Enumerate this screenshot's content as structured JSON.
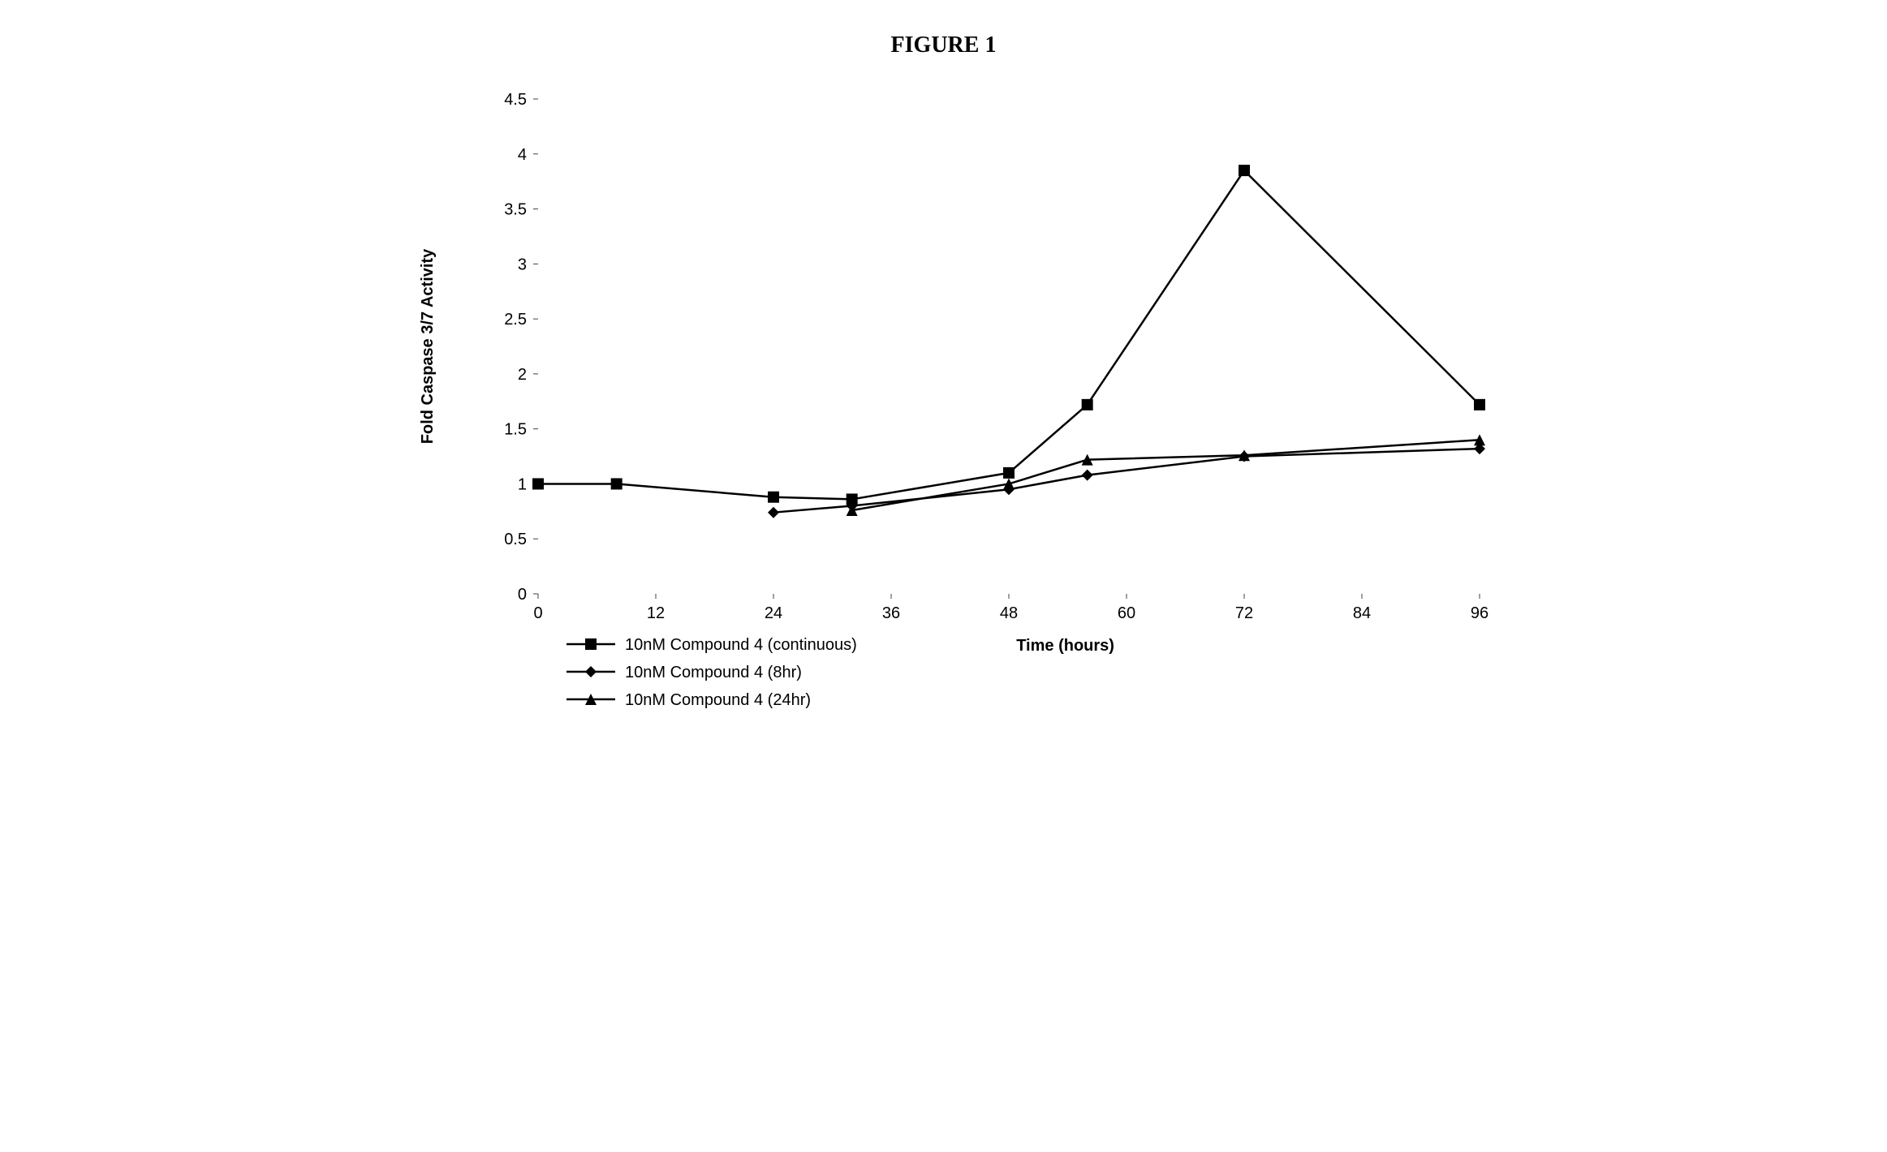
{
  "figure_title": "FIGURE 1",
  "chart": {
    "type": "line",
    "xlabel": "Time (hours)",
    "ylabel": "Fold Caspase 3/7 Activity",
    "xlim": [
      0,
      96
    ],
    "ylim": [
      0,
      4.5
    ],
    "xticks": [
      0,
      12,
      24,
      36,
      48,
      60,
      72,
      84,
      96
    ],
    "yticks": [
      0,
      0.5,
      1,
      1.5,
      2,
      2.5,
      3,
      3.5,
      4,
      4.5
    ],
    "line_color": "#000000",
    "line_width": 2.5,
    "marker_size": 14,
    "background_color": "#ffffff",
    "tick_color": "#404040",
    "grid_on": false,
    "series": [
      {
        "name": "10nM Compound 4 (continuous)",
        "marker": "square",
        "x": [
          0,
          8,
          24,
          32,
          48,
          56,
          72,
          96
        ],
        "y": [
          1.0,
          1.0,
          0.88,
          0.86,
          1.1,
          1.72,
          3.85,
          1.72
        ]
      },
      {
        "name": "10nM Compound 4 (8hr)",
        "marker": "diamond",
        "x": [
          24,
          32,
          48,
          56,
          72,
          96
        ],
        "y": [
          0.74,
          0.8,
          0.95,
          1.08,
          1.25,
          1.32
        ]
      },
      {
        "name": "10nM Compound 4 (24hr)",
        "marker": "triangle",
        "x": [
          32,
          48,
          56,
          72,
          96
        ],
        "y": [
          0.76,
          1.0,
          1.22,
          1.26,
          1.4
        ]
      }
    ],
    "legend_position": "bottom-left",
    "title_fontsize": 28,
    "label_fontsize": 20,
    "tick_fontsize": 20,
    "legend_fontsize": 20
  }
}
